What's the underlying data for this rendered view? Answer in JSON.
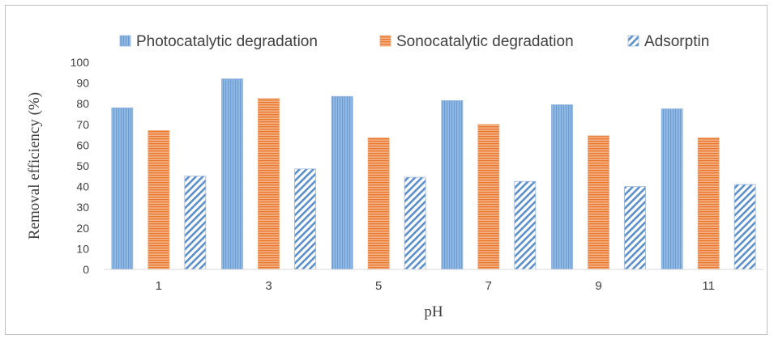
{
  "chart_data": {
    "type": "bar",
    "title": "",
    "xlabel": "pH",
    "ylabel": "Removal efficiency (%)",
    "categories": [
      "1",
      "3",
      "5",
      "7",
      "9",
      "11"
    ],
    "ylim": [
      0,
      100
    ],
    "yticks": [
      0,
      10,
      20,
      30,
      40,
      50,
      60,
      70,
      80,
      90,
      100
    ],
    "grid": false,
    "legend_position": "top",
    "series": [
      {
        "name": "Photocatalytic degradation",
        "values": [
          78,
          92,
          83.5,
          81.5,
          79.5,
          77.5
        ],
        "color": "#5b9bd5",
        "pattern": "vertical-stripes"
      },
      {
        "name": "Sonocatalytic degradation",
        "values": [
          67,
          82.5,
          63.5,
          70,
          64.5,
          63.5
        ],
        "color": "#ed7d31",
        "pattern": "horizontal-stripes"
      },
      {
        "name": "Adsorptin",
        "values": [
          45,
          48.5,
          44.5,
          42.5,
          40,
          41
        ],
        "color": "#4472c4",
        "pattern": "diagonal-stripes"
      }
    ]
  }
}
